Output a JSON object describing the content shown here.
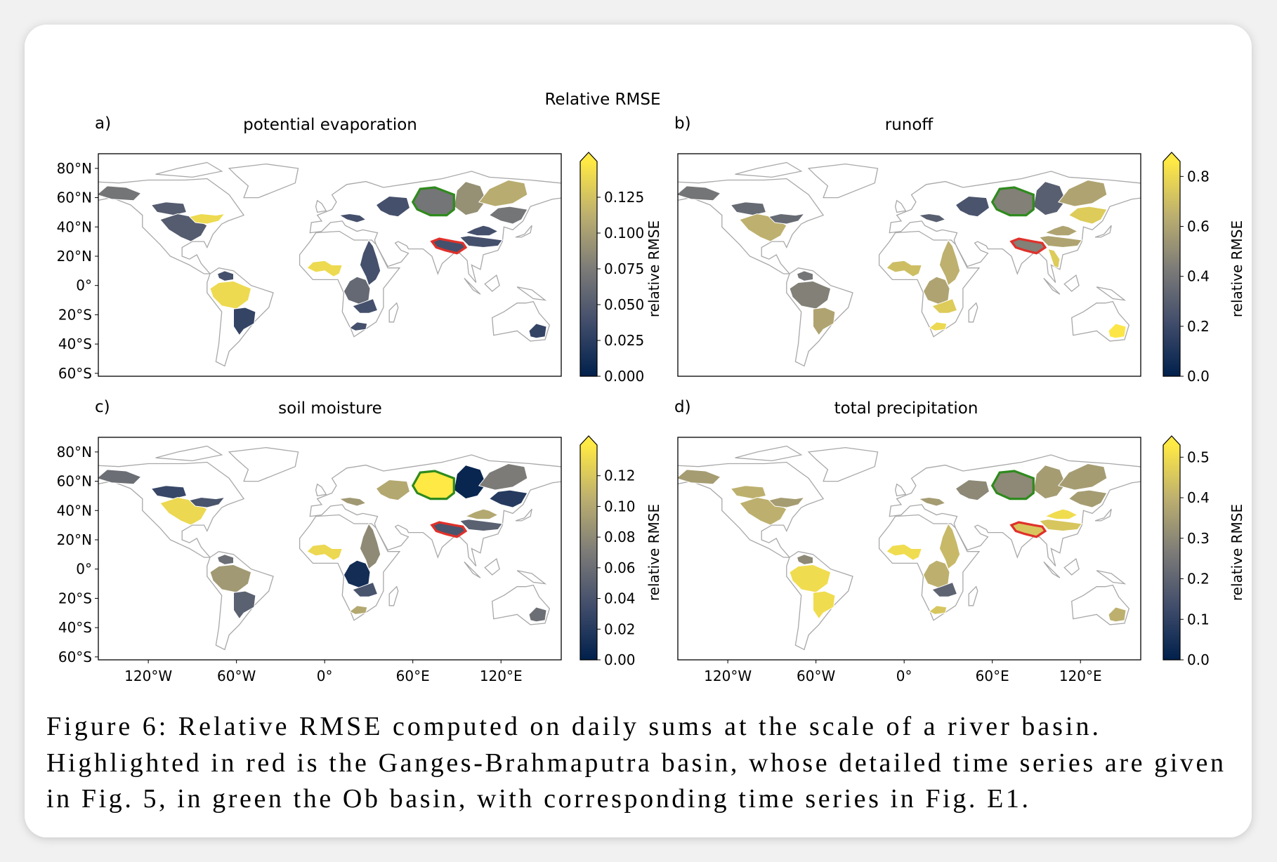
{
  "title": "Relative RMSE",
  "map": {
    "xlim": [
      -154,
      161
    ],
    "ylim": [
      -62,
      90
    ],
    "xticks": [
      {
        "value": -120,
        "label": "120°W"
      },
      {
        "value": -60,
        "label": "60°W"
      },
      {
        "value": 0,
        "label": "0°"
      },
      {
        "value": 60,
        "label": "60°E"
      },
      {
        "value": 120,
        "label": "120°E"
      }
    ],
    "yticks": [
      {
        "value": 80,
        "label": "80°N"
      },
      {
        "value": 60,
        "label": "60°N"
      },
      {
        "value": 40,
        "label": "40°N"
      },
      {
        "value": 20,
        "label": "20°N"
      },
      {
        "value": 0,
        "label": "0°"
      },
      {
        "value": -20,
        "label": "20°S"
      },
      {
        "value": -40,
        "label": "40°S"
      },
      {
        "value": -60,
        "label": "60°S"
      }
    ]
  },
  "panels": [
    {
      "label": "a)",
      "title": "potential evaporation",
      "colorbar": {
        "label": "relative RMSE",
        "lim": [
          0,
          0.15
        ],
        "ticks": [
          {
            "value": 0,
            "label": "0.000"
          },
          0.025,
          {
            "value": 0.05,
            "label": "0.050"
          },
          0.075,
          {
            "value": 0.1,
            "label": "0.100"
          },
          0.125
        ]
      },
      "values": [
        0.07,
        0.05,
        0.05,
        0.14,
        0.04,
        0.14,
        0.03,
        0.14,
        0.04,
        0.06,
        0.04,
        0.04,
        0.04,
        0.04,
        0.07,
        0.09,
        0.11,
        0.07,
        0.04,
        0.04,
        0.04,
        null,
        0.03
      ]
    },
    {
      "label": "b)",
      "title": "runoff",
      "colorbar": {
        "label": "relative RMSE",
        "lim": [
          0,
          0.86
        ],
        "ticks": [
          {
            "value": 0,
            "label": "0.0"
          },
          0.2,
          0.4,
          0.6,
          0.8
        ]
      },
      "values": [
        0.4,
        0.35,
        0.65,
        0.35,
        0.4,
        0.45,
        0.6,
        0.7,
        0.65,
        0.6,
        0.75,
        0.8,
        0.3,
        0.25,
        0.45,
        0.3,
        0.6,
        0.75,
        0.45,
        0.6,
        0.6,
        0.75,
        0.85
      ]
    },
    {
      "label": "c)",
      "title": "soil moisture",
      "colorbar": {
        "label": "relative RMSE",
        "lim": [
          0,
          0.14
        ],
        "ticks": [
          {
            "value": 0,
            "label": "0.00"
          },
          0.02,
          0.04,
          0.06,
          0.08,
          {
            "value": 0.1,
            "label": "0.10"
          },
          0.12
        ]
      },
      "values": [
        0.06,
        0.03,
        0.13,
        0.04,
        0.06,
        0.09,
        0.05,
        0.13,
        0.08,
        0.01,
        0.04,
        0.1,
        0.09,
        0.1,
        0.14,
        0.005,
        0.07,
        0.02,
        0.04,
        0.05,
        0.1,
        null,
        0.06
      ]
    },
    {
      "label": "d)",
      "title": "total precipitation",
      "colorbar": {
        "label": "relative RMSE",
        "lim": [
          0,
          0.53
        ],
        "ticks": [
          {
            "value": 0,
            "label": "0.0"
          },
          0.1,
          0.2,
          0.3,
          0.4,
          0.5
        ]
      },
      "values": [
        0.35,
        0.4,
        0.4,
        0.35,
        0.3,
        0.5,
        0.5,
        0.5,
        0.42,
        0.4,
        0.2,
        0.45,
        0.35,
        0.3,
        0.3,
        0.35,
        0.35,
        0.35,
        0.45,
        0.45,
        0.5,
        null,
        0.4
      ]
    }
  ],
  "caption": [
    "Figure  6: Relative RMSE computed on daily sums at the scale of a river basin.",
    "Highlighted in red is the Ganges-Brahmaputra basin, whose detailed time series are given",
    "in Fig. 5, in green the Ob basin, with corresponding time series in Fig. E1."
  ]
}
